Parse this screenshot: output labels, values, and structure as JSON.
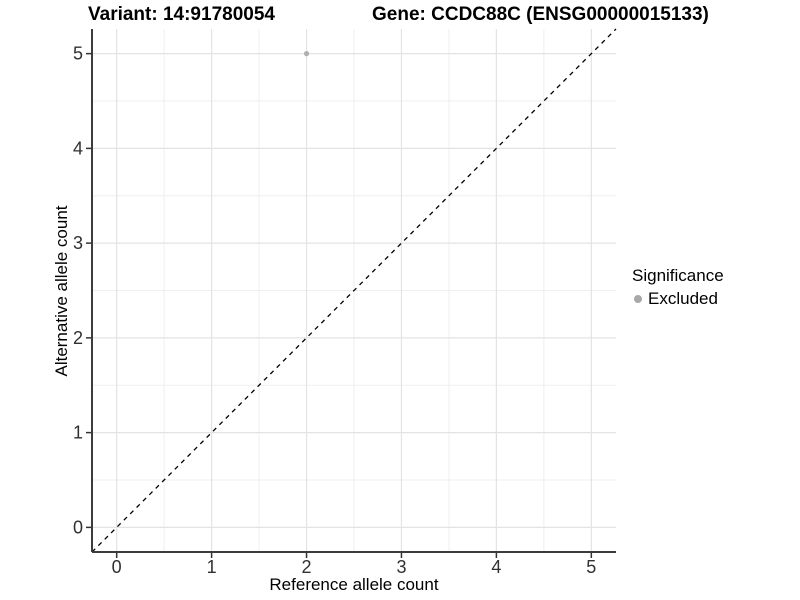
{
  "header": {
    "variant_title": "Variant: 14:91780054",
    "gene_title": "Gene: CCDC88C (ENSG00000015133)"
  },
  "legend": {
    "title": "Significance",
    "entries": [
      {
        "label": "Excluded",
        "color": "#a8a8a8"
      }
    ]
  },
  "colors": {
    "background": "#ffffff",
    "grid_major": "#e3e3e3",
    "grid_minor": "#efefef",
    "axis_line": "#3c3c3c",
    "tick_mark": "#333333",
    "tick_label": "#303030",
    "point": "#b0b0b0",
    "diagonal_line": "#000000"
  },
  "chart_data": {
    "type": "scatter",
    "xlabel": "Reference allele count",
    "ylabel": "Alternative allele count",
    "xlim": [
      -0.26,
      5.26
    ],
    "ylim": [
      -0.26,
      5.26
    ],
    "xticks": [
      0,
      1,
      2,
      3,
      4,
      5
    ],
    "yticks": [
      0,
      1,
      2,
      3,
      4,
      5
    ],
    "minor_gridline_step": 0.5,
    "grid": "major+minor",
    "legend_position": "right",
    "series": [
      {
        "name": "Excluded",
        "color": "#b0b0b0",
        "points": [
          {
            "x": 2,
            "y": 5
          }
        ]
      }
    ],
    "reference_line": {
      "kind": "identity y=x",
      "slope": 1,
      "intercept": 0,
      "style": "dashed",
      "color": "#000000"
    }
  }
}
